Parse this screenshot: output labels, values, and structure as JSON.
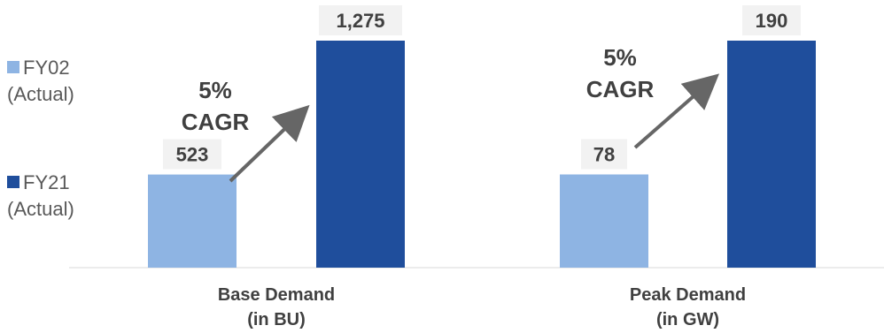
{
  "chart_data": {
    "type": "bar",
    "categories": [
      "Base Demand\n(in BU)",
      "Peak Demand\n(in GW)"
    ],
    "series": [
      {
        "name": "FY02 (Actual)",
        "values": [
          523,
          78
        ]
      },
      {
        "name": "FY21 (Actual)",
        "values": [
          1275,
          190
        ]
      }
    ],
    "data_labels": [
      [
        "523",
        "1,275"
      ],
      [
        "78",
        "190"
      ]
    ],
    "annotations": [
      "5%\nCAGR",
      "5%\nCAGR"
    ],
    "legend": {
      "placement": "left",
      "entries": [
        {
          "line1": "FY02",
          "line2": "(Actual)"
        },
        {
          "line1": "FY21",
          "line2": "(Actual)"
        }
      ]
    },
    "colors": {
      "FY02": "#8eb4e3",
      "FY21": "#1f4e9c",
      "arrow": "#666666",
      "label_box": "#f2f2f2"
    },
    "grid": false
  }
}
